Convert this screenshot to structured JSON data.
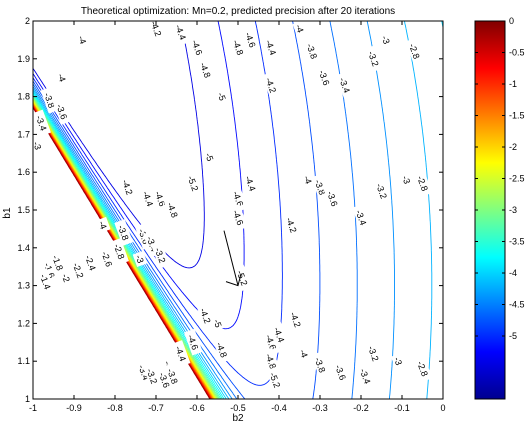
{
  "chart_data": {
    "type": "contour",
    "title": "Theoretical optimization: Mn=0.2, predicted precision after 20 iterations",
    "xlabel": "b2",
    "ylabel": "b1",
    "xlim": [
      -1,
      0
    ],
    "ylim": [
      1,
      2
    ],
    "xticks": [
      -1,
      -0.9,
      -0.8,
      -0.7,
      -0.6,
      -0.5,
      -0.4,
      -0.3,
      -0.2,
      -0.1,
      0
    ],
    "yticks": [
      1,
      1.1,
      1.2,
      1.3,
      1.4,
      1.5,
      1.6,
      1.7,
      1.8,
      1.9,
      2
    ],
    "colorbar": {
      "range": [
        -6,
        0
      ],
      "ticks": [
        0,
        -0.5,
        -1,
        -1.5,
        -2,
        -2.5,
        -3,
        -3.5,
        -4,
        -4.5,
        -5
      ],
      "colormap": "jet"
    },
    "level_step": 0.2,
    "minimum_b2": -0.5,
    "minimum_b1": 1.3,
    "contour_labels": [
      {
        "text": "-4",
        "x": -0.88,
        "y": 1.95
      },
      {
        "text": "-4.2",
        "x": -0.7,
        "y": 1.98
      },
      {
        "text": "-4.4",
        "x": -0.64,
        "y": 1.97
      },
      {
        "text": "-4.6",
        "x": -0.6,
        "y": 1.93
      },
      {
        "text": "-4.8",
        "x": -0.58,
        "y": 1.87
      },
      {
        "text": "-5",
        "x": -0.54,
        "y": 1.8
      },
      {
        "text": "-4.8",
        "x": -0.5,
        "y": 1.93
      },
      {
        "text": "-4.6",
        "x": -0.47,
        "y": 1.95
      },
      {
        "text": "-4.4",
        "x": -0.42,
        "y": 1.93
      },
      {
        "text": "-4.2",
        "x": -0.42,
        "y": 1.83
      },
      {
        "text": "-4",
        "x": -0.35,
        "y": 1.98
      },
      {
        "text": "-3.8",
        "x": -0.32,
        "y": 1.92
      },
      {
        "text": "-3.6",
        "x": -0.29,
        "y": 1.85
      },
      {
        "text": "-3.4",
        "x": -0.24,
        "y": 1.83
      },
      {
        "text": "-3.2",
        "x": -0.17,
        "y": 1.9
      },
      {
        "text": "-3",
        "x": -0.14,
        "y": 1.95
      },
      {
        "text": "-2.8",
        "x": -0.07,
        "y": 1.92
      },
      {
        "text": "-4",
        "x": -0.93,
        "y": 1.85
      },
      {
        "text": "-3.8",
        "x": -0.96,
        "y": 1.79
      },
      {
        "text": "-3.6",
        "x": -0.93,
        "y": 1.76
      },
      {
        "text": "-3.4",
        "x": -0.98,
        "y": 1.73
      },
      {
        "text": "-3",
        "x": -0.99,
        "y": 1.67
      },
      {
        "text": "-5",
        "x": -0.57,
        "y": 1.64
      },
      {
        "text": "-5.2",
        "x": -0.61,
        "y": 1.57
      },
      {
        "text": "-4.2",
        "x": -0.77,
        "y": 1.56
      },
      {
        "text": "-4.4",
        "x": -0.72,
        "y": 1.53
      },
      {
        "text": "-4.6",
        "x": -0.69,
        "y": 1.53
      },
      {
        "text": "-4.8",
        "x": -0.66,
        "y": 1.5
      },
      {
        "text": "-4.6",
        "x": -0.5,
        "y": 1.53
      },
      {
        "text": "-4.4",
        "x": -0.47,
        "y": 1.57
      },
      {
        "text": "-4.2",
        "x": -0.37,
        "y": 1.46
      },
      {
        "text": "-4",
        "x": -0.33,
        "y": 1.58
      },
      {
        "text": "-3.8",
        "x": -0.3,
        "y": 1.56
      },
      {
        "text": "-3.6",
        "x": -0.27,
        "y": 1.53
      },
      {
        "text": "-3.4",
        "x": -0.2,
        "y": 1.48
      },
      {
        "text": "-3.2",
        "x": -0.15,
        "y": 1.55
      },
      {
        "text": "-3",
        "x": -0.09,
        "y": 1.58
      },
      {
        "text": "-2.8",
        "x": -0.05,
        "y": 1.57
      },
      {
        "text": "-4.6",
        "x": -0.5,
        "y": 1.48
      },
      {
        "text": "-4",
        "x": -0.83,
        "y": 1.46
      },
      {
        "text": "-3.8",
        "x": -0.78,
        "y": 1.44
      },
      {
        "text": "-3.6",
        "x": -0.73,
        "y": 1.43
      },
      {
        "text": "-3.4",
        "x": -0.71,
        "y": 1.41
      },
      {
        "text": "-3.2",
        "x": -0.69,
        "y": 1.38
      },
      {
        "text": "-3",
        "x": -0.74,
        "y": 1.37
      },
      {
        "text": "-2.8",
        "x": -0.79,
        "y": 1.39
      },
      {
        "text": "-2.6",
        "x": -0.82,
        "y": 1.37
      },
      {
        "text": "-2.4",
        "x": -0.86,
        "y": 1.36
      },
      {
        "text": "-2.2",
        "x": -0.89,
        "y": 1.34
      },
      {
        "text": "-2",
        "x": -0.92,
        "y": 1.32
      },
      {
        "text": "-1.8",
        "x": -0.94,
        "y": 1.36
      },
      {
        "text": "-1.6",
        "x": -0.96,
        "y": 1.34
      },
      {
        "text": "-1.4",
        "x": -0.97,
        "y": 1.31
      },
      {
        "text": "-5.2",
        "x": -0.49,
        "y": 1.32
      },
      {
        "text": "-5",
        "x": -0.55,
        "y": 1.2
      },
      {
        "text": "-4.8",
        "x": -0.54,
        "y": 1.13
      },
      {
        "text": "-4.6",
        "x": -0.61,
        "y": 1.15
      },
      {
        "text": "-4.4",
        "x": -0.64,
        "y": 1.12
      },
      {
        "text": "-4.2",
        "x": -0.58,
        "y": 1.22
      },
      {
        "text": "-4",
        "x": -0.67,
        "y": 1.09
      },
      {
        "text": "-3.8",
        "x": -0.66,
        "y": 1.06
      },
      {
        "text": "-3.6",
        "x": -0.68,
        "y": 1.05
      },
      {
        "text": "-3.4",
        "x": -0.73,
        "y": 1.07
      },
      {
        "text": "-3.2",
        "x": -0.71,
        "y": 1.06
      },
      {
        "text": "-4.6",
        "x": -0.42,
        "y": 1.15
      },
      {
        "text": "-4.4",
        "x": -0.4,
        "y": 1.17
      },
      {
        "text": "-4.2",
        "x": -0.36,
        "y": 1.21
      },
      {
        "text": "-4.8",
        "x": -0.42,
        "y": 1.1
      },
      {
        "text": "-5.2",
        "x": -0.41,
        "y": 1.05
      },
      {
        "text": "-4",
        "x": -0.34,
        "y": 1.12
      },
      {
        "text": "-3.8",
        "x": -0.3,
        "y": 1.09
      },
      {
        "text": "-3.6",
        "x": -0.25,
        "y": 1.07
      },
      {
        "text": "-3.4",
        "x": -0.19,
        "y": 1.06
      },
      {
        "text": "-3.2",
        "x": -0.17,
        "y": 1.12
      },
      {
        "text": "-3",
        "x": -0.11,
        "y": 1.1
      },
      {
        "text": "-2.8",
        "x": -0.05,
        "y": 1.08
      }
    ]
  }
}
